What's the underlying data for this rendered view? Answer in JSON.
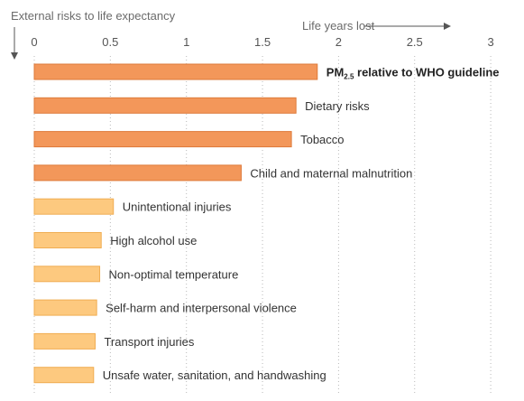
{
  "chart_data": {
    "type": "bar",
    "orientation": "horizontal",
    "title": "External risks to life expectancy",
    "xlabel": "Life years lost",
    "xlim": [
      0,
      3
    ],
    "xticks": [
      0,
      0.5,
      1,
      1.5,
      2,
      2.5,
      3
    ],
    "xtick_labels": [
      "0",
      "0.5",
      "1",
      "1.5",
      "2",
      "2.5",
      "3"
    ],
    "grid": "vertical-dotted",
    "categories": [
      "relative to WHO guideline",
      "Dietary risks",
      "Tobacco",
      "Child and maternal malnutrition",
      "Unintentional injuries",
      "High alcohol use",
      "Non-optimal temperature",
      "Self-harm and interpersonal violence",
      "Transport injuries",
      "Unsafe water, sanitation, and handwashing"
    ],
    "first_label_prefix": "PM",
    "first_label_subscript": "2.5",
    "values": [
      1.86,
      1.72,
      1.69,
      1.36,
      0.52,
      0.44,
      0.43,
      0.41,
      0.4,
      0.39
    ],
    "colors": [
      "#f3975a",
      "#f3975a",
      "#f3975a",
      "#f3975a",
      "#fdc97f",
      "#fdc97f",
      "#fdc97f",
      "#fdc97f",
      "#fdc97f",
      "#fdc97f"
    ],
    "edge_colors": [
      "#de7a3a",
      "#de7a3a",
      "#de7a3a",
      "#de7a3a",
      "#f0ad52",
      "#f0ad52",
      "#f0ad52",
      "#f0ad52",
      "#f0ad52",
      "#f0ad52"
    ],
    "highlight_first": true
  }
}
